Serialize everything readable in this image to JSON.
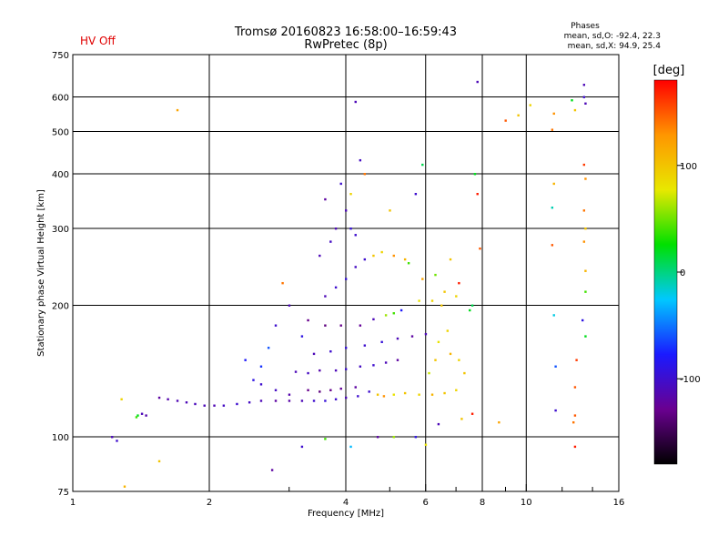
{
  "chart_data": {
    "type": "scatter",
    "title": "Tromsø 20160823 16:58:00–16:59:43",
    "subtitle": "RwPretec (8p)",
    "status": "HV Off",
    "stats": {
      "title": "Phases",
      "line_o": "mean, sd,O: -92.4, 22.3",
      "line_x": "mean, sd,X:  94.9, 25.4"
    },
    "xlabel": "Frequency [MHz]",
    "ylabel": "Stationary phase Virtual Height [km]",
    "xscale": "log",
    "yscale": "log",
    "xlim": [
      1,
      16
    ],
    "ylim": [
      75,
      750
    ],
    "x_ticks": [
      {
        "value": 1,
        "label": "1"
      },
      {
        "value": 2,
        "label": "2"
      },
      {
        "value": 4,
        "label": "4"
      },
      {
        "value": 6,
        "label": "6"
      },
      {
        "value": 8,
        "label": "8"
      },
      {
        "value": 10,
        "label": "10"
      },
      {
        "value": 16,
        "label": "16"
      }
    ],
    "x_gridlines": [
      2,
      4,
      6,
      8,
      10
    ],
    "x_minor_ticks": [
      3,
      5,
      7,
      9,
      12,
      14
    ],
    "y_ticks": [
      {
        "value": 75,
        "label": "75"
      },
      {
        "value": 100,
        "label": "100"
      },
      {
        "value": 200,
        "label": "200"
      },
      {
        "value": 300,
        "label": "300"
      },
      {
        "value": 400,
        "label": "400"
      },
      {
        "value": 500,
        "label": "500"
      },
      {
        "value": 600,
        "label": "600"
      },
      {
        "value": 750,
        "label": "750"
      }
    ],
    "colorbar": {
      "label": "[deg]",
      "range": [
        -180,
        180
      ],
      "ticks": [
        {
          "value": 100,
          "label": "100"
        },
        {
          "value": 0,
          "label": "0"
        },
        {
          "value": -100,
          "label": "-100"
        }
      ],
      "colors": [
        "#000000",
        "#6a0090",
        "#1a1aff",
        "#00c8ff",
        "#00e000",
        "#e8e800",
        "#ff9600",
        "#ff0000"
      ]
    },
    "points": [
      {
        "x": 1.42,
        "y": 113,
        "phase": -110
      },
      {
        "x": 1.45,
        "y": 112,
        "phase": -115
      },
      {
        "x": 1.38,
        "y": 111,
        "phase": 40
      },
      {
        "x": 1.39,
        "y": 112,
        "phase": 20
      },
      {
        "x": 1.28,
        "y": 122,
        "phase": 90
      },
      {
        "x": 1.55,
        "y": 123,
        "phase": -120
      },
      {
        "x": 1.62,
        "y": 122,
        "phase": -115
      },
      {
        "x": 1.7,
        "y": 121,
        "phase": -112
      },
      {
        "x": 1.78,
        "y": 120,
        "phase": -110
      },
      {
        "x": 1.86,
        "y": 119,
        "phase": -108
      },
      {
        "x": 1.95,
        "y": 118,
        "phase": -110
      },
      {
        "x": 2.05,
        "y": 118,
        "phase": -112
      },
      {
        "x": 2.15,
        "y": 118,
        "phase": -105
      },
      {
        "x": 2.3,
        "y": 119,
        "phase": -100
      },
      {
        "x": 2.45,
        "y": 120,
        "phase": -105
      },
      {
        "x": 2.6,
        "y": 121,
        "phase": -110
      },
      {
        "x": 2.8,
        "y": 121,
        "phase": -120
      },
      {
        "x": 3.0,
        "y": 121,
        "phase": -118
      },
      {
        "x": 3.2,
        "y": 121,
        "phase": -110
      },
      {
        "x": 3.4,
        "y": 121,
        "phase": -100
      },
      {
        "x": 3.6,
        "y": 121,
        "phase": -95
      },
      {
        "x": 3.8,
        "y": 122,
        "phase": -100
      },
      {
        "x": 4.0,
        "y": 123,
        "phase": -110
      },
      {
        "x": 4.25,
        "y": 124,
        "phase": -100
      },
      {
        "x": 2.6,
        "y": 132,
        "phase": -100
      },
      {
        "x": 2.8,
        "y": 128,
        "phase": -105
      },
      {
        "x": 3.0,
        "y": 125,
        "phase": -115
      },
      {
        "x": 3.3,
        "y": 128,
        "phase": -130
      },
      {
        "x": 3.5,
        "y": 127,
        "phase": -135
      },
      {
        "x": 3.7,
        "y": 128,
        "phase": -130
      },
      {
        "x": 3.9,
        "y": 129,
        "phase": -125
      },
      {
        "x": 4.2,
        "y": 130,
        "phase": -120
      },
      {
        "x": 4.5,
        "y": 127,
        "phase": -100
      },
      {
        "x": 4.7,
        "y": 125,
        "phase": 100
      },
      {
        "x": 4.85,
        "y": 124,
        "phase": 130
      },
      {
        "x": 5.1,
        "y": 125,
        "phase": 80
      },
      {
        "x": 5.4,
        "y": 126,
        "phase": 100
      },
      {
        "x": 5.8,
        "y": 125,
        "phase": 90
      },
      {
        "x": 6.2,
        "y": 125,
        "phase": 110
      },
      {
        "x": 6.6,
        "y": 126,
        "phase": 100
      },
      {
        "x": 7.0,
        "y": 128,
        "phase": 90
      },
      {
        "x": 3.1,
        "y": 141,
        "phase": -110
      },
      {
        "x": 3.3,
        "y": 140,
        "phase": -105
      },
      {
        "x": 3.5,
        "y": 142,
        "phase": -115
      },
      {
        "x": 3.8,
        "y": 142,
        "phase": -110
      },
      {
        "x": 4.0,
        "y": 143,
        "phase": -100
      },
      {
        "x": 4.3,
        "y": 145,
        "phase": -105
      },
      {
        "x": 4.6,
        "y": 146,
        "phase": -100
      },
      {
        "x": 4.9,
        "y": 148,
        "phase": -110
      },
      {
        "x": 5.2,
        "y": 150,
        "phase": -120
      },
      {
        "x": 3.4,
        "y": 155,
        "phase": -110
      },
      {
        "x": 3.7,
        "y": 157,
        "phase": -100
      },
      {
        "x": 4.0,
        "y": 160,
        "phase": -95
      },
      {
        "x": 4.4,
        "y": 162,
        "phase": -100
      },
      {
        "x": 4.8,
        "y": 165,
        "phase": -95
      },
      {
        "x": 5.2,
        "y": 168,
        "phase": -110
      },
      {
        "x": 5.6,
        "y": 170,
        "phase": -120
      },
      {
        "x": 6.0,
        "y": 172,
        "phase": -110
      },
      {
        "x": 3.2,
        "y": 170,
        "phase": -90
      },
      {
        "x": 3.3,
        "y": 185,
        "phase": -130
      },
      {
        "x": 3.6,
        "y": 180,
        "phase": -135
      },
      {
        "x": 3.9,
        "y": 180,
        "phase": -130
      },
      {
        "x": 4.3,
        "y": 180,
        "phase": -125
      },
      {
        "x": 4.6,
        "y": 186,
        "phase": -110
      },
      {
        "x": 4.9,
        "y": 190,
        "phase": 60
      },
      {
        "x": 5.1,
        "y": 192,
        "phase": 40
      },
      {
        "x": 5.3,
        "y": 195,
        "phase": -80
      },
      {
        "x": 5.8,
        "y": 205,
        "phase": 80
      },
      {
        "x": 6.2,
        "y": 205,
        "phase": 90
      },
      {
        "x": 6.5,
        "y": 200,
        "phase": 100
      },
      {
        "x": 6.7,
        "y": 175,
        "phase": 90
      },
      {
        "x": 6.8,
        "y": 155,
        "phase": 110
      },
      {
        "x": 7.1,
        "y": 150,
        "phase": 90
      },
      {
        "x": 7.3,
        "y": 140,
        "phase": 100
      },
      {
        "x": 6.4,
        "y": 165,
        "phase": 80
      },
      {
        "x": 6.3,
        "y": 150,
        "phase": 100
      },
      {
        "x": 6.1,
        "y": 140,
        "phase": 70
      },
      {
        "x": 3.6,
        "y": 210,
        "phase": -110
      },
      {
        "x": 3.8,
        "y": 220,
        "phase": -100
      },
      {
        "x": 4.0,
        "y": 230,
        "phase": -95
      },
      {
        "x": 4.2,
        "y": 245,
        "phase": -105
      },
      {
        "x": 4.4,
        "y": 255,
        "phase": -100
      },
      {
        "x": 4.6,
        "y": 260,
        "phase": 100
      },
      {
        "x": 4.8,
        "y": 265,
        "phase": 90
      },
      {
        "x": 5.1,
        "y": 260,
        "phase": 130
      },
      {
        "x": 5.4,
        "y": 255,
        "phase": 110
      },
      {
        "x": 3.5,
        "y": 260,
        "phase": -110
      },
      {
        "x": 3.7,
        "y": 280,
        "phase": -105
      },
      {
        "x": 3.8,
        "y": 300,
        "phase": -110
      },
      {
        "x": 4.1,
        "y": 300,
        "phase": -95
      },
      {
        "x": 4.2,
        "y": 290,
        "phase": -100
      },
      {
        "x": 4.0,
        "y": 330,
        "phase": -110
      },
      {
        "x": 3.6,
        "y": 350,
        "phase": -120
      },
      {
        "x": 3.9,
        "y": 380,
        "phase": -100
      },
      {
        "x": 4.3,
        "y": 430,
        "phase": -105
      },
      {
        "x": 4.2,
        "y": 585,
        "phase": -110
      },
      {
        "x": 4.4,
        "y": 400,
        "phase": 140
      },
      {
        "x": 4.1,
        "y": 360,
        "phase": 90
      },
      {
        "x": 5.0,
        "y": 330,
        "phase": 100
      },
      {
        "x": 5.5,
        "y": 250,
        "phase": 40
      },
      {
        "x": 5.9,
        "y": 230,
        "phase": 120
      },
      {
        "x": 6.3,
        "y": 235,
        "phase": 50
      },
      {
        "x": 6.6,
        "y": 215,
        "phase": 100
      },
      {
        "x": 7.0,
        "y": 210,
        "phase": 90
      },
      {
        "x": 7.5,
        "y": 195,
        "phase": 20
      },
      {
        "x": 7.6,
        "y": 200,
        "phase": 10
      },
      {
        "x": 7.1,
        "y": 225,
        "phase": 170
      },
      {
        "x": 5.9,
        "y": 420,
        "phase": 10
      },
      {
        "x": 5.7,
        "y": 360,
        "phase": -100
      },
      {
        "x": 6.8,
        "y": 255,
        "phase": 100
      },
      {
        "x": 2.4,
        "y": 150,
        "phase": -80
      },
      {
        "x": 2.6,
        "y": 145,
        "phase": -70
      },
      {
        "x": 2.7,
        "y": 160,
        "phase": -60
      },
      {
        "x": 2.5,
        "y": 135,
        "phase": -90
      },
      {
        "x": 2.8,
        "y": 180,
        "phase": -100
      },
      {
        "x": 2.9,
        "y": 225,
        "phase": 140
      },
      {
        "x": 3.0,
        "y": 200,
        "phase": -110
      },
      {
        "x": 2.75,
        "y": 84,
        "phase": -120
      },
      {
        "x": 3.2,
        "y": 95,
        "phase": -100
      },
      {
        "x": 3.6,
        "y": 99,
        "phase": 40
      },
      {
        "x": 4.1,
        "y": 95,
        "phase": -30
      },
      {
        "x": 4.7,
        "y": 100,
        "phase": -120
      },
      {
        "x": 5.1,
        "y": 100,
        "phase": 60
      },
      {
        "x": 5.7,
        "y": 100,
        "phase": -90
      },
      {
        "x": 6.0,
        "y": 96,
        "phase": 80
      },
      {
        "x": 6.4,
        "y": 107,
        "phase": -110
      },
      {
        "x": 7.2,
        "y": 110,
        "phase": 100
      },
      {
        "x": 7.6,
        "y": 113,
        "phase": 170
      },
      {
        "x": 8.7,
        "y": 108,
        "phase": 120
      },
      {
        "x": 1.7,
        "y": 560,
        "phase": 120
      },
      {
        "x": 1.55,
        "y": 88,
        "phase": 100
      },
      {
        "x": 1.3,
        "y": 77,
        "phase": 110
      },
      {
        "x": 1.22,
        "y": 100,
        "phase": -110
      },
      {
        "x": 1.25,
        "y": 98,
        "phase": -100
      },
      {
        "x": 7.8,
        "y": 650,
        "phase": -110
      },
      {
        "x": 7.8,
        "y": 360,
        "phase": 170
      },
      {
        "x": 7.7,
        "y": 400,
        "phase": 20
      },
      {
        "x": 7.9,
        "y": 270,
        "phase": 150
      },
      {
        "x": 9.0,
        "y": 530,
        "phase": 150
      },
      {
        "x": 9.6,
        "y": 545,
        "phase": 100
      },
      {
        "x": 10.2,
        "y": 575,
        "phase": 90
      },
      {
        "x": 11.5,
        "y": 550,
        "phase": 130
      },
      {
        "x": 11.4,
        "y": 505,
        "phase": 140
      },
      {
        "x": 11.5,
        "y": 380,
        "phase": 110
      },
      {
        "x": 11.4,
        "y": 335,
        "phase": -10
      },
      {
        "x": 11.4,
        "y": 275,
        "phase": 150
      },
      {
        "x": 11.5,
        "y": 190,
        "phase": -20
      },
      {
        "x": 11.6,
        "y": 115,
        "phase": -100
      },
      {
        "x": 12.6,
        "y": 590,
        "phase": 20
      },
      {
        "x": 12.8,
        "y": 560,
        "phase": 100
      },
      {
        "x": 13.4,
        "y": 640,
        "phase": -110
      },
      {
        "x": 13.4,
        "y": 600,
        "phase": -100
      },
      {
        "x": 13.5,
        "y": 580,
        "phase": -110
      },
      {
        "x": 13.4,
        "y": 420,
        "phase": 160
      },
      {
        "x": 13.5,
        "y": 390,
        "phase": 130
      },
      {
        "x": 13.4,
        "y": 330,
        "phase": 140
      },
      {
        "x": 13.5,
        "y": 300,
        "phase": 100
      },
      {
        "x": 13.4,
        "y": 280,
        "phase": 130
      },
      {
        "x": 13.5,
        "y": 240,
        "phase": 110
      },
      {
        "x": 13.5,
        "y": 215,
        "phase": 40
      },
      {
        "x": 13.5,
        "y": 170,
        "phase": 20
      },
      {
        "x": 13.3,
        "y": 185,
        "phase": -90
      },
      {
        "x": 12.8,
        "y": 130,
        "phase": 150
      },
      {
        "x": 12.8,
        "y": 112,
        "phase": 150
      },
      {
        "x": 12.7,
        "y": 108,
        "phase": 140
      },
      {
        "x": 12.8,
        "y": 95,
        "phase": 170
      },
      {
        "x": 11.6,
        "y": 145,
        "phase": -60
      },
      {
        "x": 12.9,
        "y": 150,
        "phase": 160
      }
    ]
  }
}
